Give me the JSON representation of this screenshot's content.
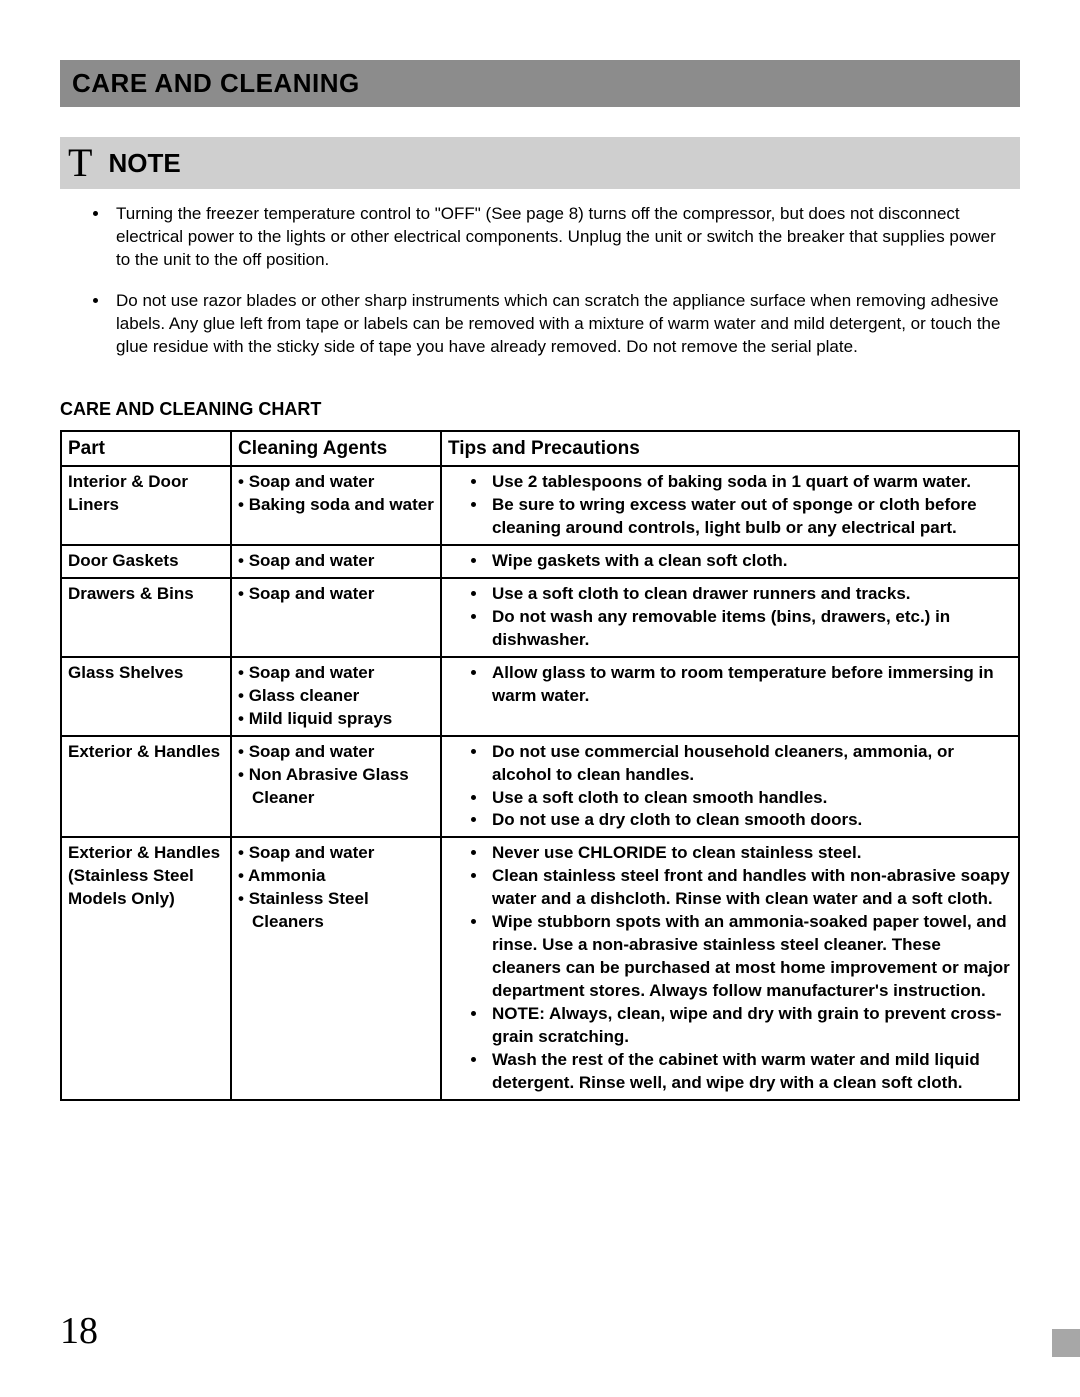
{
  "title": "CARE AND CLEANING",
  "note": {
    "icon": "T",
    "label": "NOTE",
    "items": [
      "Turning the freezer temperature control to \"OFF\" (See page 8) turns off the compressor, but does not disconnect electrical power to the lights or other electrical components.  Unplug the unit or switch the breaker that supplies power to the unit to the off position.",
      "Do not use razor blades or other sharp instruments which can scratch the appliance surface when removing adhesive labels. Any glue left from tape or labels can be removed with a mixture of warm water and mild detergent, or touch the glue residue with the sticky side of tape you have already removed.  Do not remove the serial plate."
    ]
  },
  "chart_heading": "CARE AND CLEANING CHART",
  "columns": [
    "Part",
    "Cleaning Agents",
    "Tips and Precautions"
  ],
  "rows": [
    {
      "part": "Interior & Door Liners",
      "agents": [
        "Soap and water",
        "Baking soda and water"
      ],
      "tips": [
        "Use 2 tablespoons of baking soda in 1 quart of warm water.",
        "Be sure to wring excess water out of sponge or cloth before cleaning around controls, light bulb or any electrical part."
      ]
    },
    {
      "part": "Door Gaskets",
      "agents": [
        "Soap and water"
      ],
      "tips": [
        "Wipe gaskets with a clean soft cloth."
      ]
    },
    {
      "part": "Drawers & Bins",
      "agents": [
        "Soap and water"
      ],
      "tips": [
        "Use a soft cloth to clean drawer runners and tracks.",
        "Do not wash any removable items (bins, drawers, etc.) in dishwasher."
      ]
    },
    {
      "part": "Glass Shelves",
      "agents": [
        "Soap and water",
        "Glass cleaner",
        "Mild liquid sprays"
      ],
      "tips": [
        "Allow glass to warm to room temperature before immersing in warm water."
      ]
    },
    {
      "part": "Exterior & Handles",
      "agents": [
        "Soap and water",
        "Non Abrasive Glass Cleaner"
      ],
      "tips": [
        "Do not use commercial household cleaners, ammonia, or alcohol to clean handles.",
        "Use a soft cloth to clean smooth handles.",
        "Do not use a dry cloth to clean smooth doors."
      ]
    },
    {
      "part": "Exterior & Handles\n(Stainless Steel Models Only)",
      "agents": [
        "Soap and water",
        "Ammonia",
        "Stainless Steel Cleaners"
      ],
      "tips": [
        "Never use CHLORIDE to clean stainless steel.",
        "Clean stainless steel front and handles with non-abrasive soapy water and a dishcloth. Rinse with clean water and a soft cloth.",
        " Wipe stubborn spots with an ammonia-soaked paper towel, and rinse. Use a non-abrasive stainless steel cleaner. These cleaners can be purchased at most home improvement or major department stores. Always follow manufacturer's instruction.",
        "NOTE: Always, clean, wipe and dry with grain to prevent cross-grain scratching.",
        "Wash the rest of the cabinet with warm water and mild liquid detergent. Rinse well, and wipe dry with a clean soft cloth."
      ]
    }
  ],
  "page_number": "18",
  "colors": {
    "title_bar_bg": "#8c8c8c",
    "note_bar_bg": "#cfcfcf",
    "text": "#000000",
    "side_stripe": "#a7a7a7",
    "border": "#000000"
  }
}
